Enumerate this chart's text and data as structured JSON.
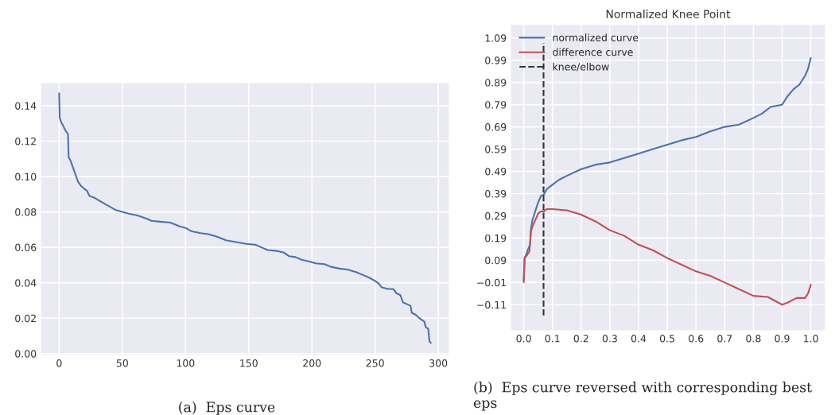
{
  "chart_data": [
    {
      "type": "line",
      "xlim": [
        -14.7,
        308.7
      ],
      "ylim": [
        -0.001,
        0.153
      ],
      "xticks": [
        0,
        50,
        100,
        150,
        200,
        250,
        300
      ],
      "yticks": [
        {
          "value": 0,
          "label": "0.00"
        },
        {
          "value": 0.02,
          "label": "0.02"
        },
        {
          "value": 0.04,
          "label": "0.04"
        },
        {
          "value": 0.06,
          "label": "0.06"
        },
        {
          "value": 0.08,
          "label": "0.08"
        },
        {
          "value": 0.1,
          "label": "0.10"
        },
        {
          "value": 0.12,
          "label": "0.12"
        },
        {
          "value": 0.14,
          "label": "0.14"
        }
      ],
      "grid": true,
      "legend": false,
      "annotations": [
        "(a)  Eps curve"
      ],
      "series": [
        {
          "color": "#4c72b0",
          "x": [
            0,
            0.5,
            2,
            3,
            5,
            7,
            7.5,
            9,
            10,
            12,
            13,
            15,
            17,
            20,
            22,
            24,
            28,
            35,
            40,
            45,
            50,
            55,
            62,
            70,
            73,
            80,
            88,
            95,
            100,
            105,
            112,
            118,
            125,
            132,
            140,
            148,
            155,
            160,
            165,
            172,
            178,
            182,
            187,
            192,
            198,
            203,
            210,
            215,
            222,
            228,
            235,
            240,
            245,
            250,
            253,
            255,
            260,
            264,
            265,
            267,
            270,
            271,
            272,
            275,
            278,
            279,
            282,
            285,
            289,
            290,
            292,
            293,
            294
          ],
          "values": [
            0.147,
            0.133,
            0.13,
            0.129,
            0.126,
            0.124,
            0.111,
            0.109,
            0.107,
            0.103,
            0.101,
            0.097,
            0.095,
            0.093,
            0.092,
            0.089,
            0.088,
            0.085,
            0.083,
            0.081,
            0.08,
            0.079,
            0.078,
            0.076,
            0.075,
            0.0745,
            0.074,
            0.072,
            0.071,
            0.069,
            0.068,
            0.0675,
            0.066,
            0.064,
            0.063,
            0.062,
            0.0615,
            0.06,
            0.0585,
            0.058,
            0.057,
            0.055,
            0.0545,
            0.053,
            0.052,
            0.051,
            0.0505,
            0.049,
            0.048,
            0.0475,
            0.046,
            0.0445,
            0.043,
            0.041,
            0.0395,
            0.0375,
            0.0365,
            0.0365,
            0.036,
            0.034,
            0.033,
            0.031,
            0.029,
            0.028,
            0.027,
            0.023,
            0.022,
            0.02,
            0.018,
            0.015,
            0.014,
            0.007,
            0.006
          ]
        }
      ]
    },
    {
      "type": "line",
      "title": "Normalized Knee Point",
      "xlim": [
        -0.046,
        1.051
      ],
      "ylim": [
        -0.227,
        1.15
      ],
      "xticks": [
        {
          "value": 0,
          "label": "0.0"
        },
        0.1,
        0.2,
        0.3,
        0.4,
        0.5,
        0.6,
        0.7,
        0.8,
        0.9,
        {
          "value": 1,
          "label": "1.0"
        }
      ],
      "yticks": [
        {
          "value": -0.11,
          "label": "−0.11"
        },
        {
          "value": -0.01,
          "label": "−0.01"
        },
        0.09,
        0.19,
        0.29,
        0.39,
        0.49,
        0.59,
        0.69,
        0.79,
        0.89,
        0.99,
        1.09
      ],
      "grid": true,
      "legend": "top left",
      "annotations": [
        "(b)  Eps curve reversed with corresponding best eps"
      ],
      "ref_lines": [
        {
          "axis": "x",
          "value": 0.069,
          "label": "knee/elbow",
          "color": "#333333",
          "line_style": "dashed"
        }
      ],
      "series": [
        {
          "name": "normalized curve",
          "color": "#4c72b0",
          "x": [
            0,
            0.003,
            0.01,
            0.015,
            0.022,
            0.025,
            0.03,
            0.04,
            0.05,
            0.06,
            0.07,
            0.08,
            0.1,
            0.12,
            0.15,
            0.2,
            0.25,
            0.3,
            0.35,
            0.4,
            0.45,
            0.5,
            0.55,
            0.6,
            0.65,
            0.7,
            0.75,
            0.8,
            0.83,
            0.86,
            0.9,
            0.92,
            0.94,
            0.96,
            0.98,
            0.99,
            1.0
          ],
          "values": [
            0.0,
            0.1,
            0.12,
            0.14,
            0.16,
            0.23,
            0.27,
            0.31,
            0.35,
            0.38,
            0.385,
            0.41,
            0.43,
            0.45,
            0.47,
            0.5,
            0.52,
            0.53,
            0.55,
            0.57,
            0.59,
            0.61,
            0.63,
            0.645,
            0.67,
            0.69,
            0.7,
            0.73,
            0.75,
            0.78,
            0.79,
            0.83,
            0.86,
            0.88,
            0.92,
            0.95,
            1.0
          ]
        },
        {
          "name": "difference curve",
          "color": "#c44e52",
          "x": [
            0,
            0.003,
            0.01,
            0.02,
            0.025,
            0.03,
            0.04,
            0.05,
            0.06,
            0.07,
            0.08,
            0.1,
            0.15,
            0.2,
            0.25,
            0.3,
            0.35,
            0.4,
            0.45,
            0.5,
            0.55,
            0.6,
            0.65,
            0.7,
            0.75,
            0.8,
            0.85,
            0.9,
            0.92,
            0.95,
            0.98,
            0.99,
            1.0
          ],
          "values": [
            -0.01,
            0.1,
            0.11,
            0.13,
            0.22,
            0.24,
            0.27,
            0.3,
            0.31,
            0.31,
            0.32,
            0.32,
            0.315,
            0.295,
            0.265,
            0.225,
            0.2,
            0.16,
            0.135,
            0.1,
            0.07,
            0.04,
            0.02,
            -0.01,
            -0.04,
            -0.07,
            -0.075,
            -0.11,
            -0.1,
            -0.08,
            -0.08,
            -0.06,
            -0.02
          ]
        }
      ]
    }
  ]
}
